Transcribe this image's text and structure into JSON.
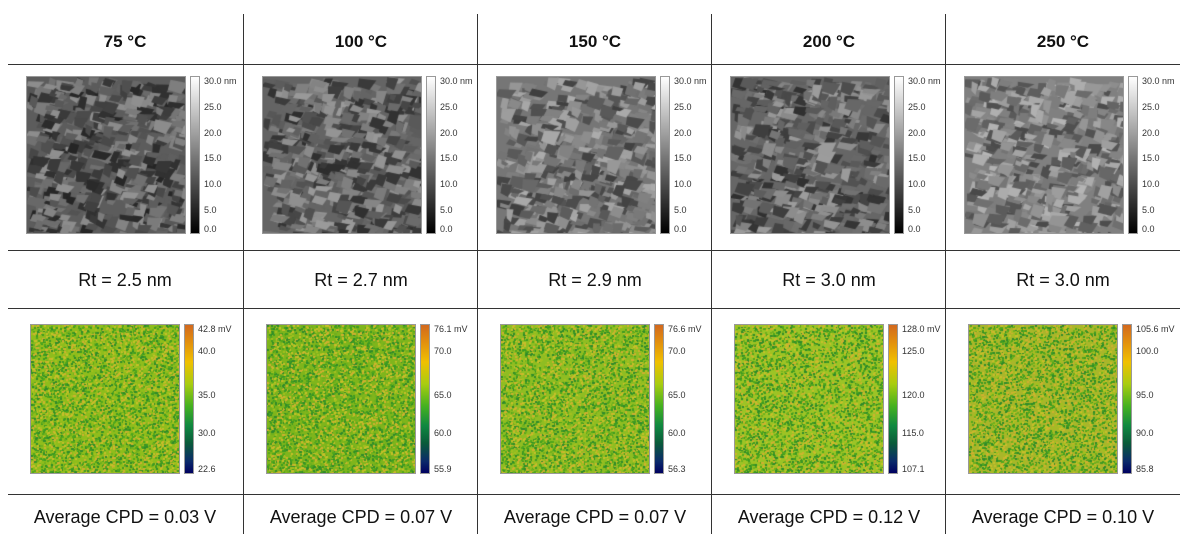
{
  "columns": [
    {
      "temperature": "75 °C",
      "rt": "Rt = 2.5 nm",
      "cpd": "Average CPD = 0.03 V",
      "afm_scale": [
        "30.0 nm",
        "25.0",
        "20.0",
        "15.0",
        "10.0",
        "5.0",
        "0.0"
      ],
      "kpfm_scale": [
        "42.8 mV",
        "40.0",
        "35.0",
        "30.0",
        "22.6"
      ],
      "kpfm_tint": "#8fbd1c"
    },
    {
      "temperature": "100 °C",
      "rt": "Rt = 2.7 nm",
      "cpd": "Average CPD = 0.07 V",
      "afm_scale": [
        "30.0 nm",
        "25.0",
        "20.0",
        "15.0",
        "10.0",
        "5.0",
        "0.0"
      ],
      "kpfm_scale": [
        "76.1 mV",
        "70.0",
        "65.0",
        "60.0",
        "55.9"
      ],
      "kpfm_tint": "#7fb51c"
    },
    {
      "temperature": "150 °C",
      "rt": "Rt = 2.9 nm",
      "cpd": "Average CPD = 0.07 V",
      "afm_scale": [
        "30.0 nm",
        "25.0",
        "20.0",
        "15.0",
        "10.0",
        "5.0",
        "0.0"
      ],
      "kpfm_scale": [
        "76.6 mV",
        "70.0",
        "65.0",
        "60.0",
        "56.3"
      ],
      "kpfm_tint": "#8fbd22"
    },
    {
      "temperature": "200 °C",
      "rt": "Rt = 3.0 nm",
      "cpd": "Average CPD = 0.12 V",
      "afm_scale": [
        "30.0 nm",
        "25.0",
        "20.0",
        "15.0",
        "10.0",
        "5.0",
        "0.0"
      ],
      "kpfm_scale": [
        "128.0 mV",
        "125.0",
        "120.0",
        "115.0",
        "107.1"
      ],
      "kpfm_tint": "#9cc426"
    },
    {
      "temperature": "250 °C",
      "rt": "Rt = 3.0  nm",
      "cpd": "Average CPD = 0.10 V",
      "afm_scale": [
        "30.0 nm",
        "25.0",
        "20.0",
        "15.0",
        "10.0",
        "5.0",
        "0.0"
      ],
      "kpfm_scale": [
        "105.6 mV",
        "100.0",
        "95.0",
        "90.0",
        "85.8"
      ],
      "kpfm_tint": "#a9b62a"
    }
  ]
}
